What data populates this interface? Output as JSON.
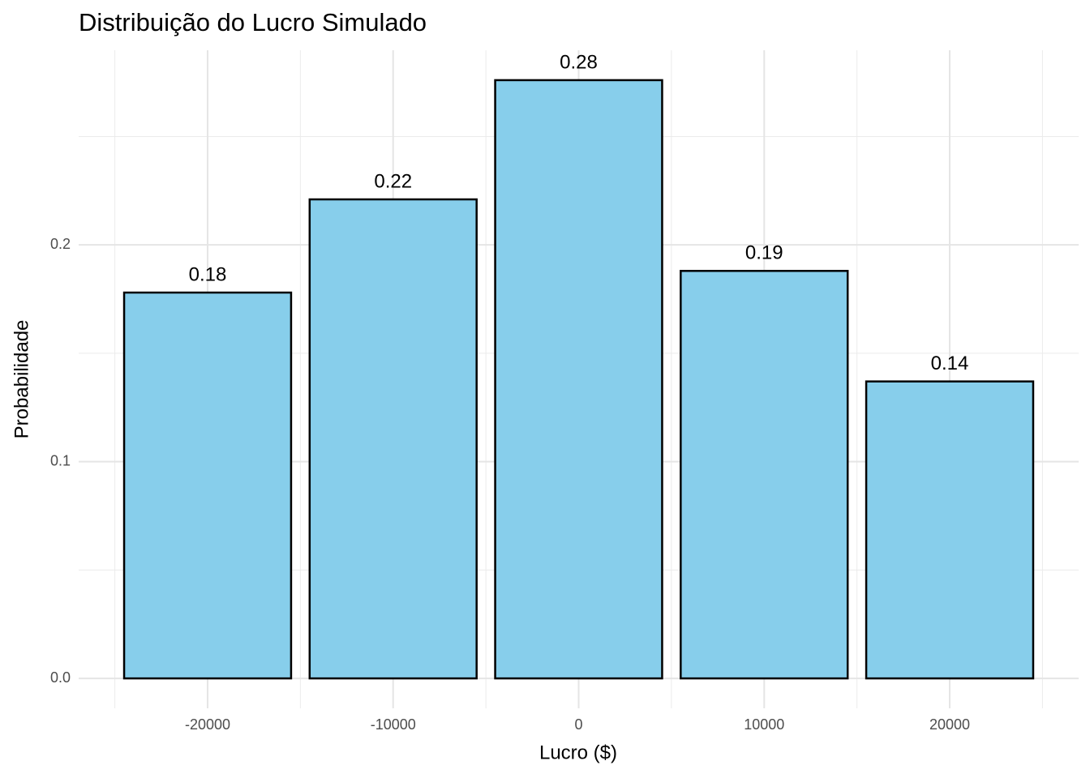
{
  "chart_data": {
    "type": "bar",
    "title": "Distribuição do Lucro Simulado",
    "x_label": "Lucro ($)",
    "y_label": "Probabilidade",
    "x": [
      -20000,
      -10000,
      0,
      10000,
      20000
    ],
    "values": [
      0.178,
      0.221,
      0.276,
      0.188,
      0.137
    ],
    "value_labels": [
      "0.18",
      "0.22",
      "0.28",
      "0.19",
      "0.14"
    ],
    "bar_width": 9000,
    "color": "#87ceeb",
    "edge_color": "#000000",
    "xlim": [
      -26950,
      26950
    ],
    "xticks": [
      -20000,
      -10000,
      0,
      10000,
      20000
    ],
    "x_minor_ticks": [
      -25000,
      -15000,
      -5000,
      5000,
      15000,
      25000
    ],
    "ylim": [
      -0.0138,
      0.2898
    ],
    "yticks": [
      {
        "value": 0,
        "label": "0.0"
      },
      0.1,
      0.2
    ],
    "y_minor_ticks": [
      0.05,
      0.15,
      0.25
    ],
    "grid": true
  }
}
